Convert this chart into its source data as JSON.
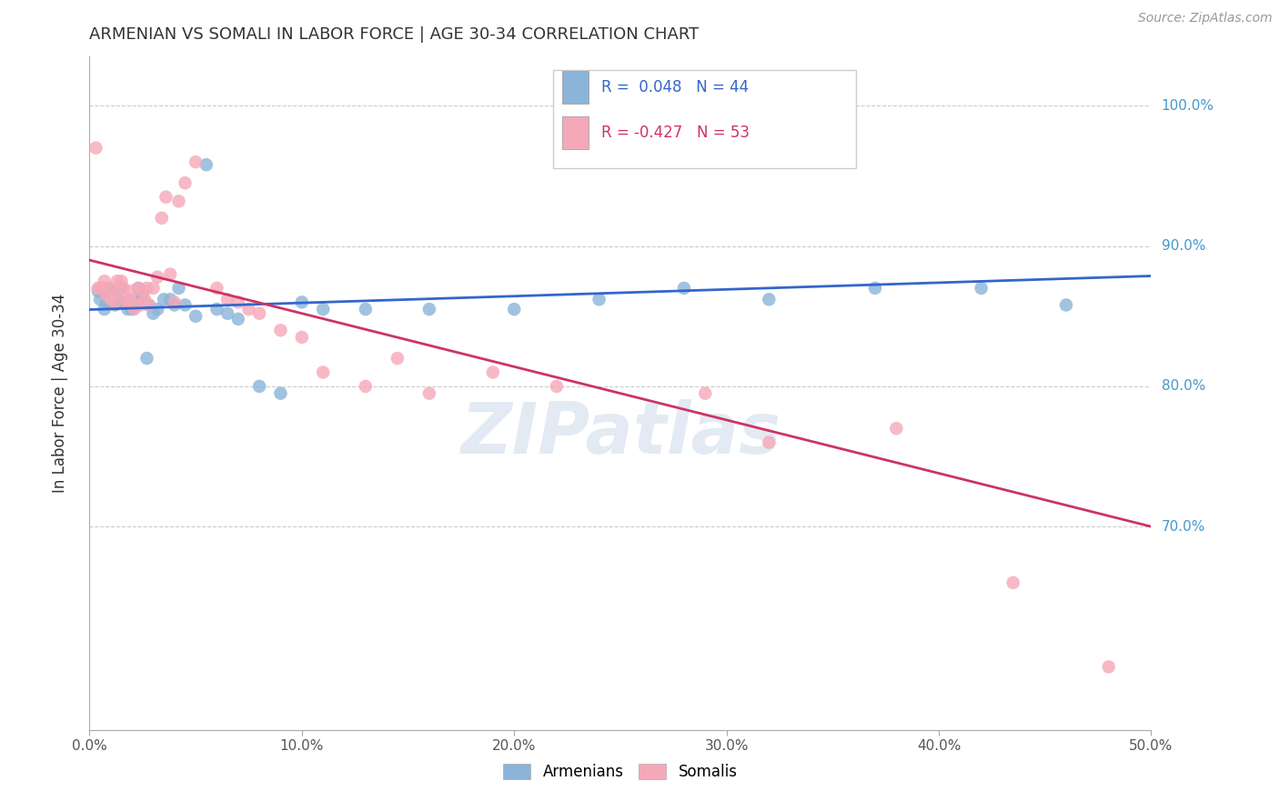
{
  "title": "ARMENIAN VS SOMALI IN LABOR FORCE | AGE 30-34 CORRELATION CHART",
  "source": "Source: ZipAtlas.com",
  "ylabel": "In Labor Force | Age 30-34",
  "xlim": [
    0.0,
    0.5
  ],
  "ylim": [
    0.555,
    1.035
  ],
  "yticks": [
    0.7,
    0.8,
    0.9,
    1.0
  ],
  "ytick_labels": [
    "70.0%",
    "80.0%",
    "90.0%",
    "100.0%"
  ],
  "xticks": [
    0.0,
    0.1,
    0.2,
    0.3,
    0.4,
    0.5
  ],
  "xtick_labels": [
    "0.0%",
    "10.0%",
    "20.0%",
    "30.0%",
    "40.0%",
    "50.0%"
  ],
  "armenian_color": "#8ab4d9",
  "somali_color": "#f5a8b8",
  "trendline_armenian_color": "#3366cc",
  "trendline_somali_color": "#cc3366",
  "watermark": "ZIPatlas",
  "armenian_x": [
    0.004,
    0.005,
    0.006,
    0.007,
    0.008,
    0.009,
    0.01,
    0.012,
    0.013,
    0.015,
    0.016,
    0.018,
    0.019,
    0.02,
    0.022,
    0.023,
    0.025,
    0.027,
    0.028,
    0.03,
    0.032,
    0.035,
    0.038,
    0.04,
    0.042,
    0.045,
    0.05,
    0.055,
    0.06,
    0.065,
    0.07,
    0.08,
    0.09,
    0.1,
    0.11,
    0.13,
    0.16,
    0.2,
    0.24,
    0.28,
    0.32,
    0.37,
    0.42,
    0.46
  ],
  "armenian_y": [
    0.868,
    0.862,
    0.87,
    0.855,
    0.86,
    0.87,
    0.865,
    0.858,
    0.862,
    0.87,
    0.86,
    0.855,
    0.858,
    0.855,
    0.862,
    0.87,
    0.865,
    0.82,
    0.858,
    0.852,
    0.855,
    0.862,
    0.862,
    0.858,
    0.87,
    0.858,
    0.85,
    0.958,
    0.855,
    0.852,
    0.848,
    0.8,
    0.795,
    0.86,
    0.855,
    0.855,
    0.855,
    0.855,
    0.862,
    0.87,
    0.862,
    0.87,
    0.87,
    0.858
  ],
  "somali_x": [
    0.003,
    0.004,
    0.005,
    0.006,
    0.007,
    0.008,
    0.009,
    0.01,
    0.011,
    0.012,
    0.013,
    0.014,
    0.015,
    0.016,
    0.017,
    0.018,
    0.019,
    0.02,
    0.021,
    0.022,
    0.023,
    0.024,
    0.025,
    0.026,
    0.027,
    0.028,
    0.03,
    0.032,
    0.034,
    0.036,
    0.038,
    0.04,
    0.042,
    0.045,
    0.05,
    0.06,
    0.065,
    0.07,
    0.075,
    0.08,
    0.09,
    0.1,
    0.11,
    0.13,
    0.145,
    0.16,
    0.19,
    0.22,
    0.29,
    0.32,
    0.38,
    0.435,
    0.48
  ],
  "somali_y": [
    0.97,
    0.87,
    0.87,
    0.87,
    0.875,
    0.865,
    0.87,
    0.862,
    0.865,
    0.86,
    0.875,
    0.87,
    0.875,
    0.87,
    0.862,
    0.86,
    0.862,
    0.868,
    0.855,
    0.858,
    0.87,
    0.858,
    0.868,
    0.862,
    0.87,
    0.858,
    0.87,
    0.878,
    0.92,
    0.935,
    0.88,
    0.86,
    0.932,
    0.945,
    0.96,
    0.87,
    0.862,
    0.86,
    0.855,
    0.852,
    0.84,
    0.835,
    0.81,
    0.8,
    0.82,
    0.795,
    0.81,
    0.8,
    0.795,
    0.76,
    0.77,
    0.66,
    0.6
  ],
  "background_color": "#ffffff",
  "grid_color": "#cccccc",
  "axis_color": "#aaaaaa",
  "title_color": "#333333",
  "right_label_color": "#4499cc",
  "bottom_label_color": "#555555"
}
